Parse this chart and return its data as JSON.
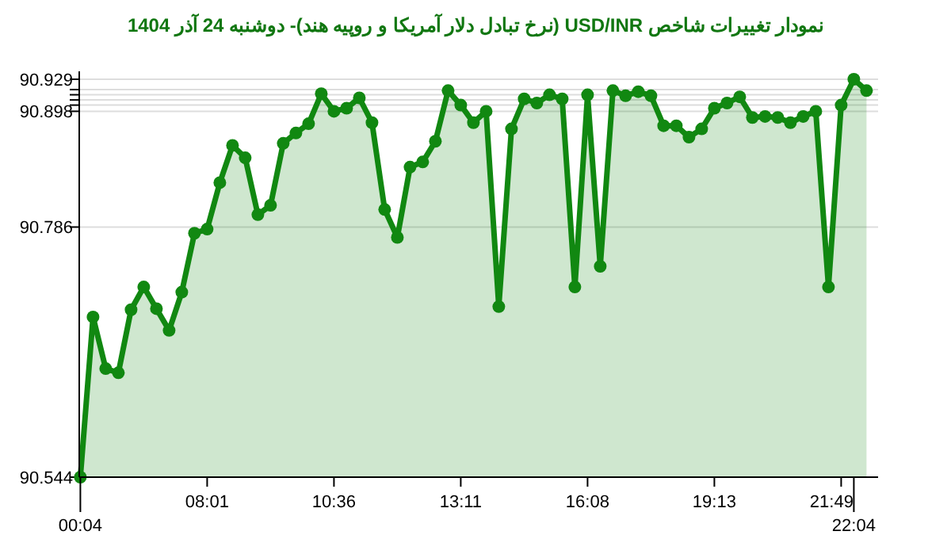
{
  "chart_data": {
    "type": "area",
    "title": "نمودار تغییرات شاخص USD/INR (نرخ تبادل دلار آمریکا و روپیه هند)-  دوشنبه  24 آذر 1404",
    "categories": [
      "00:04",
      null,
      null,
      null,
      null,
      null,
      null,
      null,
      null,
      null,
      "08:01",
      null,
      null,
      null,
      null,
      null,
      null,
      null,
      null,
      null,
      "10:36",
      null,
      null,
      null,
      null,
      null,
      null,
      null,
      null,
      null,
      "13:11",
      null,
      null,
      null,
      null,
      null,
      null,
      null,
      null,
      null,
      "16:08",
      null,
      null,
      null,
      null,
      null,
      null,
      null,
      null,
      null,
      "19:13",
      null,
      null,
      null,
      null,
      null,
      null,
      null,
      null,
      null,
      "21:49",
      "22:04",
      null
    ],
    "series": [
      {
        "color": "#118811",
        "values": [
          90.544,
          90.699,
          90.649,
          90.645,
          90.706,
          90.728,
          90.707,
          90.686,
          90.723,
          90.78,
          90.784,
          90.829,
          90.865,
          90.853,
          90.798,
          90.807,
          90.867,
          90.877,
          90.886,
          90.915,
          90.898,
          90.901,
          90.911,
          90.887,
          90.803,
          90.776,
          90.844,
          90.849,
          90.869,
          90.918,
          90.904,
          90.887,
          90.898,
          90.709,
          90.881,
          90.91,
          90.906,
          90.914,
          90.91,
          90.728,
          90.914,
          90.748,
          90.918,
          90.913,
          90.917,
          90.913,
          90.884,
          90.884,
          90.873,
          90.881,
          90.901,
          90.906,
          90.912,
          90.892,
          90.893,
          90.892,
          90.887,
          90.893,
          90.898,
          90.728,
          90.904,
          90.929,
          90.918
        ]
      }
    ],
    "ylim": [
      90.544,
      90.929
    ],
    "yticks": [
      90.544,
      90.786,
      90.898,
      {
        "value": 90.904,
        "label": null
      },
      {
        "value": 90.909,
        "label": null
      },
      {
        "value": 90.914,
        "label": null
      },
      {
        "value": 90.919,
        "label": null
      },
      90.929
    ],
    "grid": "y",
    "marker": "circle"
  }
}
